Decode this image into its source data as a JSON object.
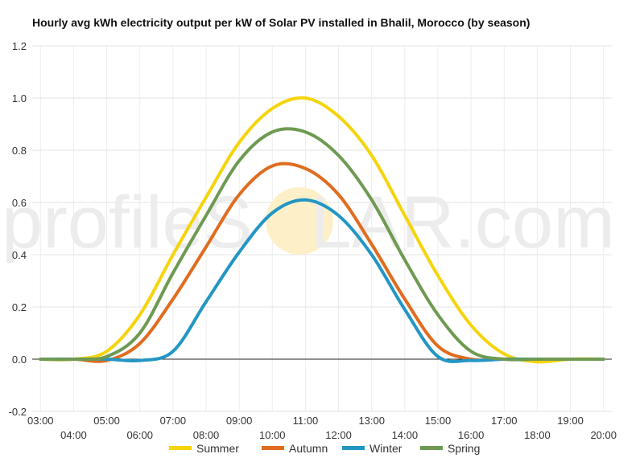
{
  "chart_data": {
    "type": "line",
    "title": "Hourly avg kWh electricity output per kW of Solar PV installed in Bhalil, Morocco (by season)",
    "xlabel": "",
    "ylabel": "",
    "x_ticks_upper": [
      "03:00",
      "05:00",
      "07:00",
      "09:00",
      "11:00",
      "13:00",
      "15:00",
      "17:00",
      "19:00"
    ],
    "x_ticks_lower": [
      "04:00",
      "06:00",
      "08:00",
      "10:00",
      "12:00",
      "14:00",
      "16:00",
      "18:00",
      "20:00"
    ],
    "x": [
      3,
      4,
      5,
      6,
      7,
      8,
      9,
      10,
      11,
      12,
      13,
      14,
      15,
      16,
      17,
      18,
      19,
      20
    ],
    "xlim": [
      2.75,
      20.25
    ],
    "ylim": [
      -0.2,
      1.2
    ],
    "y_ticks": [
      "-0.2",
      "0.0",
      "0.2",
      "0.4",
      "0.6",
      "0.8",
      "1.0",
      "1.2"
    ],
    "y_tick_values": [
      -0.2,
      0.0,
      0.2,
      0.4,
      0.6,
      0.8,
      1.0,
      1.2
    ],
    "grid": true,
    "legend_position": "bottom",
    "series": [
      {
        "name": "Summer",
        "color": "#f5d40b",
        "values": [
          0.0,
          0.0,
          0.03,
          0.17,
          0.4,
          0.62,
          0.83,
          0.96,
          1.0,
          0.93,
          0.78,
          0.55,
          0.32,
          0.13,
          0.02,
          -0.01,
          0.0,
          0.0
        ]
      },
      {
        "name": "Autumn",
        "color": "#e06c1f",
        "values": [
          0.0,
          0.0,
          -0.005,
          0.06,
          0.23,
          0.43,
          0.63,
          0.74,
          0.73,
          0.63,
          0.44,
          0.23,
          0.05,
          0.0,
          0.0,
          0.0,
          0.0,
          0.0
        ]
      },
      {
        "name": "Winter",
        "color": "#2396c4",
        "values": [
          0.0,
          0.0,
          0.0,
          -0.005,
          0.03,
          0.22,
          0.41,
          0.56,
          0.61,
          0.55,
          0.4,
          0.19,
          0.01,
          -0.005,
          0.0,
          0.0,
          0.0,
          0.0
        ]
      },
      {
        "name": "Spring",
        "color": "#6e9a51",
        "values": [
          0.0,
          0.0,
          0.01,
          0.1,
          0.33,
          0.55,
          0.76,
          0.87,
          0.87,
          0.78,
          0.61,
          0.38,
          0.17,
          0.03,
          0.0,
          0.0,
          0.0,
          0.0
        ]
      }
    ]
  },
  "watermark": {
    "text_left": "profileS",
    "text_sun": "O",
    "text_right": "LAR.com",
    "sun_color": "#fdf0c8"
  }
}
